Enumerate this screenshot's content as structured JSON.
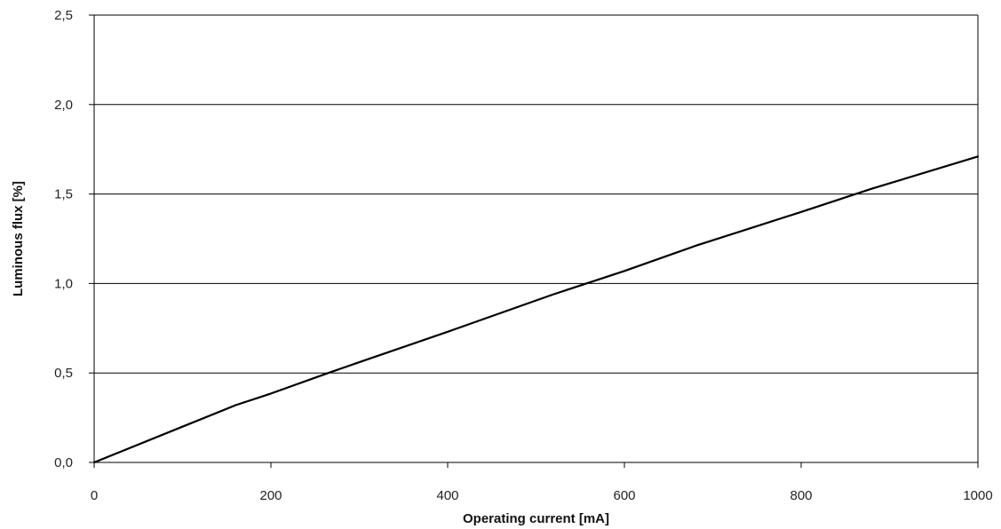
{
  "chart_data": {
    "type": "line",
    "title": "",
    "xlabel": "Operating current [mA]",
    "ylabel": "Luminous flux [%]",
    "xlim": [
      0,
      1000
    ],
    "ylim": [
      0,
      2.5
    ],
    "x_ticks": [
      0,
      200,
      400,
      600,
      800,
      1000
    ],
    "y_ticks": [
      0,
      0.5,
      1.0,
      1.5,
      2.0,
      2.5
    ],
    "x_tick_labels": [
      "0",
      "200",
      "400",
      "600",
      "800",
      "1000"
    ],
    "y_tick_labels": [
      "0,0",
      "0,5",
      "1,0",
      "1,5",
      "2,0",
      "2,5"
    ],
    "grid": "horizontal",
    "legend": "none",
    "series": [
      {
        "color": "#000000",
        "x": [
          0,
          100,
          160,
          200,
          265,
          300,
          400,
          520,
          600,
          680,
          800,
          880,
          1000
        ],
        "y": [
          0,
          0.2,
          0.32,
          0.385,
          0.5,
          0.56,
          0.73,
          0.94,
          1.07,
          1.21,
          1.4,
          1.53,
          1.71
        ]
      }
    ]
  }
}
